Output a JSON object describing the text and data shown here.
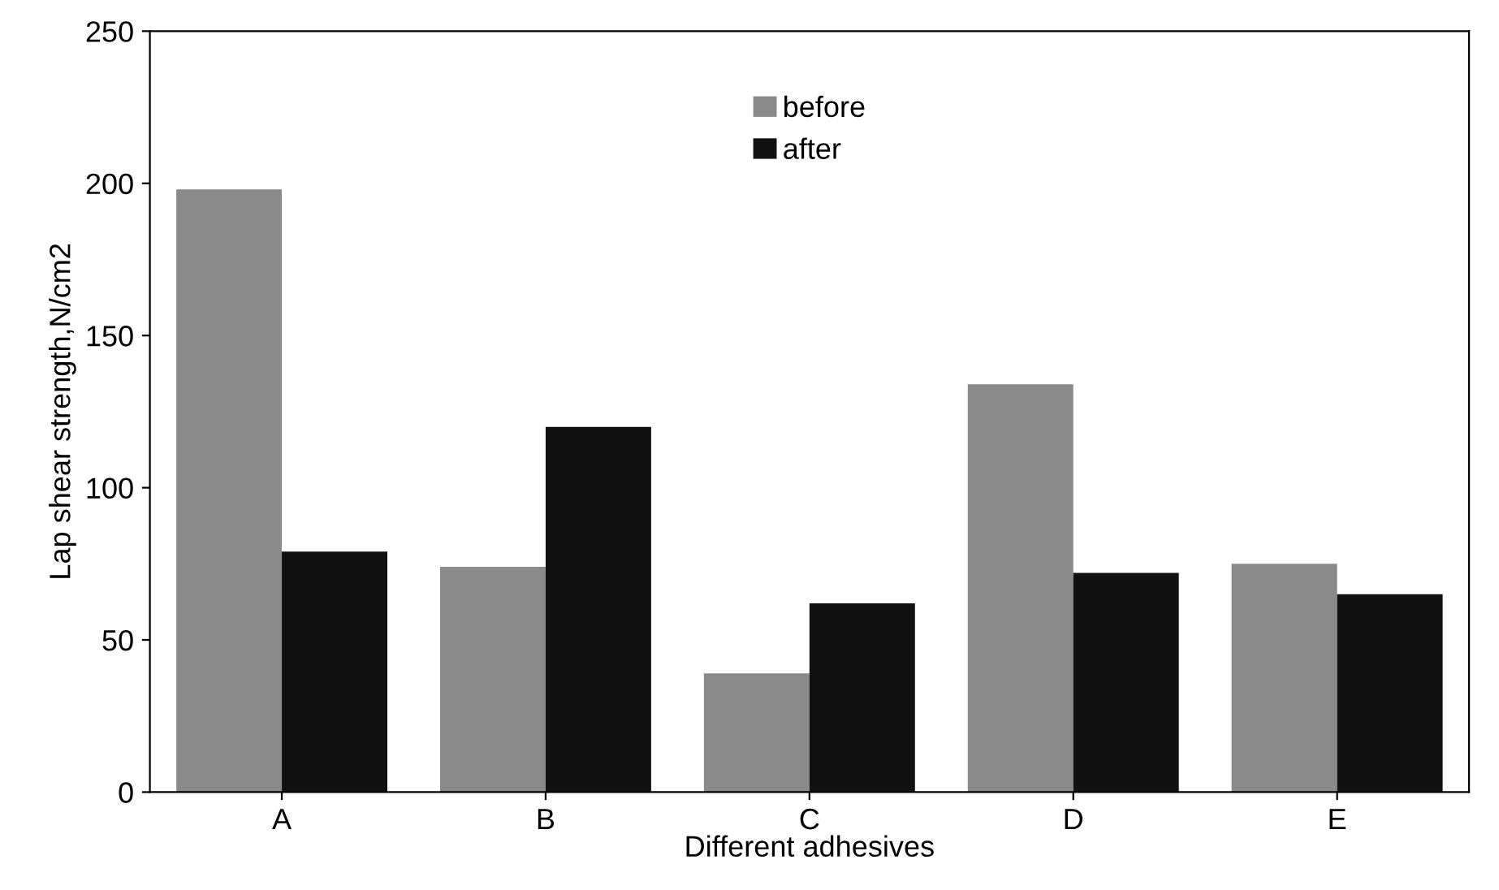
{
  "chart_data": {
    "type": "bar",
    "xlabel": "Different adhesives",
    "ylabel": "Lap shear strength,N/cm2",
    "categories": [
      "A",
      "B",
      "C",
      "D",
      "E"
    ],
    "series": [
      {
        "name": "before",
        "color": "#8a8a8a",
        "values": [
          198,
          74,
          39,
          134,
          75
        ]
      },
      {
        "name": "after",
        "color": "#111111",
        "values": [
          79,
          120,
          62,
          72,
          65
        ]
      }
    ],
    "ylim": [
      0,
      250
    ],
    "yticks": [
      0,
      50,
      100,
      150,
      200,
      250
    ],
    "grid": false,
    "legend": "top"
  }
}
